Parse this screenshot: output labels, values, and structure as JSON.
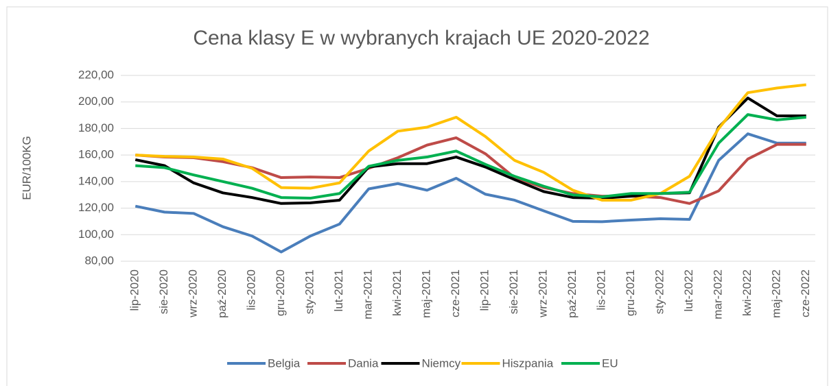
{
  "chart_data": {
    "type": "line",
    "title": "Cena klasy E w wybranych krajach UE 2020-2022",
    "y_label": "EUR/100KG",
    "categories": [
      "lip-2020",
      "sie-2020",
      "wrz-2020",
      "paź-2020",
      "lis-2020",
      "gru-2020",
      "sty-2021",
      "lut-2021",
      "mar-2021",
      "kwi-2021",
      "maj-2021",
      "cze-2021",
      "lip-2021",
      "sie-2021",
      "wrz-2021",
      "paź-2021",
      "lis-2021",
      "gru-2021",
      "sty-2022",
      "lut-2022",
      "mar-2022",
      "kwi-2022",
      "maj-2022",
      "cze-2022"
    ],
    "series": [
      {
        "name": "Belgia",
        "color": "#4a7ebb",
        "values": [
          121.5,
          117,
          116,
          106,
          99,
          87,
          99,
          108,
          134.5,
          138.5,
          133.5,
          142.5,
          130.5,
          126,
          118,
          110,
          109.8,
          111,
          112,
          111.5,
          156,
          176,
          169,
          169
        ]
      },
      {
        "name": "Dania",
        "color": "#be4b48",
        "values": [
          160,
          158.5,
          158,
          155,
          150.5,
          143,
          143.5,
          143,
          150,
          158,
          167.5,
          173,
          161,
          143,
          135.5,
          131,
          129,
          129,
          128,
          123.5,
          133,
          157,
          168,
          168
        ]
      },
      {
        "name": "Niemcy",
        "color": "#000000",
        "values": [
          156.5,
          152,
          139,
          131.5,
          128,
          123.5,
          124,
          126,
          151,
          153.5,
          153.5,
          158.5,
          151,
          141.5,
          132.5,
          128,
          127.5,
          129,
          131,
          131.5,
          181,
          203,
          189.5,
          189.5
        ]
      },
      {
        "name": "Hiszpania",
        "color": "#ffc000",
        "values": [
          160,
          159,
          158.5,
          157,
          150,
          135.5,
          135,
          139,
          163,
          178,
          181,
          188.5,
          174,
          156,
          147,
          133.5,
          126,
          126,
          131,
          144,
          180,
          207,
          210.5,
          213
        ]
      },
      {
        "name": "EU",
        "color": "#00b050",
        "values": [
          152,
          150.5,
          145,
          140,
          135,
          128,
          127.5,
          131,
          151.5,
          156,
          158.5,
          163,
          153,
          144,
          136.5,
          130,
          128.5,
          131,
          131,
          132,
          169,
          190.5,
          186.5,
          188.5
        ]
      }
    ],
    "ylim": [
      80,
      220
    ],
    "yticks": [
      {
        "value": 80,
        "label": "80,00"
      },
      {
        "value": 100,
        "label": "100,00"
      },
      {
        "value": 120,
        "label": "120,00"
      },
      {
        "value": 140,
        "label": "140,00"
      },
      {
        "value": 160,
        "label": "160,00"
      },
      {
        "value": 180,
        "label": "180,00"
      },
      {
        "value": 200,
        "label": "200,00"
      },
      {
        "value": 220,
        "label": "220,00"
      }
    ],
    "grid": true,
    "legend": "bottom"
  }
}
